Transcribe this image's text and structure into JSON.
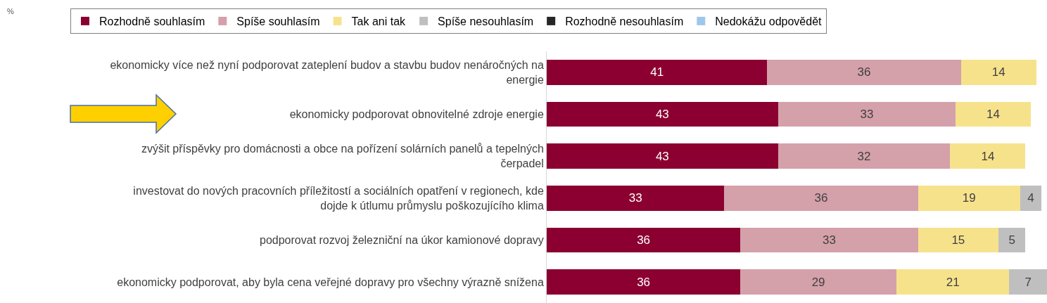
{
  "chart_data": {
    "type": "bar",
    "orientation": "horizontal",
    "stacked": true,
    "data_labels": true,
    "legend": "top",
    "tick_labels": "y",
    "xlim": [
      0,
      93
    ],
    "annotations": [
      "%"
    ],
    "categories": [
      "ekonomicky více než nyní podporovat zateplení budov a stavbu budov nenáročných na energie",
      "ekonomicky podporovat obnovitelné zdroje energie",
      "zvýšit příspěvky pro domácnosti a obce na pořízení solárních panelů a tepelných čerpadel",
      "investovat do nových pracovních příležitostí a sociálních opatření v regionech, kde dojde k útlumu průmyslu poškozujícího klima",
      "podporovat rozvoj železniční na úkor kamionové dopravy",
      "ekonomicky podporovat, aby byla cena veřejné dopravy pro všechny výrazně snížena"
    ],
    "series": [
      {
        "name": "Rozhodně souhlasím",
        "color": "#8b0030",
        "values": [
          41,
          43,
          43,
          33,
          36,
          36
        ]
      },
      {
        "name": "Spíše souhlasím",
        "color": "#d4a0aa",
        "values": [
          36,
          33,
          32,
          36,
          33,
          29
        ]
      },
      {
        "name": "Tak ani tak",
        "color": "#f7e28c",
        "values": [
          14,
          14,
          14,
          19,
          15,
          21
        ]
      },
      {
        "name": "Spíše nesouhlasím",
        "color": "#bfbfbf",
        "values": [
          null,
          null,
          null,
          4,
          5,
          7
        ]
      },
      {
        "name": "Rozhodně nesouhlasím",
        "color": "#262626",
        "values": [
          null,
          null,
          null,
          null,
          null,
          null
        ]
      },
      {
        "name": "Nedokážu odpovědět",
        "color": "#9dc8ec",
        "values": [
          null,
          null,
          null,
          null,
          null,
          null
        ]
      }
    ]
  }
}
